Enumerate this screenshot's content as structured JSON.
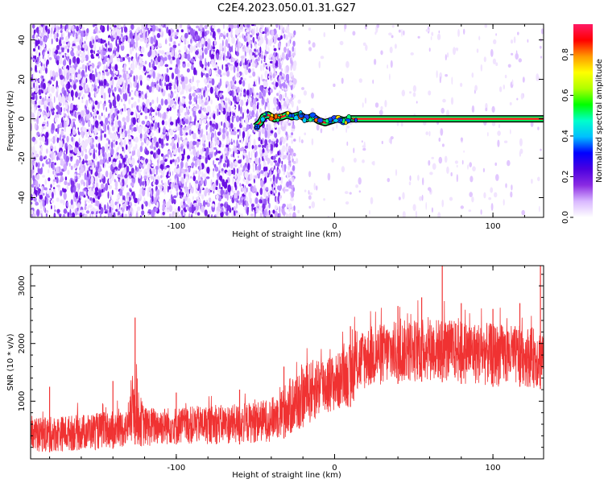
{
  "title": "C2E4.2023.050.01.31.G27",
  "chart_data": [
    {
      "type": "heatmap",
      "xlabel": "Height of straight line (km)",
      "ylabel": "Frequency (Hz)",
      "xlim": [
        -192,
        132
      ],
      "ylim": [
        -50,
        48
      ],
      "xticks": [
        -100,
        0,
        100
      ],
      "yticks": [
        -40,
        -20,
        0,
        20,
        40
      ],
      "grid": false,
      "colorbar": {
        "label": "Normalized spectral amplitude",
        "range": [
          0.0,
          0.95
        ],
        "ticks": [
          0.0,
          0.2,
          0.4,
          0.6,
          0.8
        ],
        "colormap": [
          "#ffffff",
          "#d9b8ff",
          "#8a2be2",
          "#4b00e0",
          "#0000ff",
          "#00bfff",
          "#00ffcc",
          "#00ff00",
          "#b0ff00",
          "#ffff00",
          "#ff9900",
          "#ff0000",
          "#ff1a66"
        ]
      },
      "regions": [
        {
          "x": [
            -192,
            -33
          ],
          "description": "",
          "amplitude": 0.1
        },
        {
          "x": [
            -33,
            -25
          ],
          "amplitude": 0.05
        },
        {
          "x": [
            -25,
            132
          ],
          "amplitude": 0.02
        }
      ],
      "trace": {
        "points": [
          [
            -50,
            -4
          ],
          [
            -47,
            -2
          ],
          [
            -45,
            1
          ],
          [
            -42,
            2
          ],
          [
            -38,
            0
          ],
          [
            -33,
            1
          ],
          [
            -30,
            2
          ],
          [
            -27,
            1
          ],
          [
            -22,
            2
          ],
          [
            -18,
            0
          ],
          [
            -14,
            1
          ],
          [
            -10,
            -1
          ],
          [
            -6,
            -2
          ],
          [
            -2,
            -1
          ],
          [
            2,
            0
          ],
          [
            6,
            -1
          ],
          [
            10,
            0
          ],
          [
            14,
            0
          ],
          [
            132,
            0
          ]
        ],
        "peak_amplitude": 0.9
      }
    },
    {
      "type": "line",
      "xlabel": "Height of straight line (km)",
      "ylabel": "SNR (10 * v/v)",
      "xlim": [
        -192,
        132
      ],
      "ylim": [
        0,
        3350
      ],
      "xticks": [
        -100,
        0,
        100
      ],
      "yticks": [
        1000,
        2000,
        3000
      ],
      "color": "#f03232",
      "envelope_x": [
        -192,
        -150,
        -130,
        -126,
        -124,
        -120,
        -100,
        -60,
        -40,
        -25,
        -10,
        0,
        10,
        15,
        20,
        40,
        60,
        80,
        100,
        120,
        132
      ],
      "envelope_low": [
        100,
        150,
        200,
        250,
        200,
        200,
        250,
        250,
        300,
        400,
        700,
        800,
        900,
        1100,
        1200,
        1300,
        1350,
        1300,
        1250,
        1250,
        1200
      ],
      "envelope_high": [
        700,
        800,
        850,
        1900,
        1200,
        900,
        900,
        950,
        1050,
        1500,
        1800,
        1800,
        2000,
        2200,
        2300,
        2400,
        2450,
        2400,
        2350,
        2300,
        2250
      ],
      "spikes": [
        [
          -126,
          2450
        ],
        [
          -140,
          1350
        ],
        [
          -180,
          1250
        ],
        [
          -100,
          1150
        ],
        [
          -60,
          1200
        ],
        [
          -32,
          1600
        ],
        [
          10,
          2300
        ],
        [
          40,
          2650
        ],
        [
          55,
          2800
        ],
        [
          68,
          3350
        ],
        [
          80,
          2700
        ],
        [
          100,
          2600
        ],
        [
          117,
          2700
        ],
        [
          130,
          3350
        ]
      ]
    }
  ]
}
